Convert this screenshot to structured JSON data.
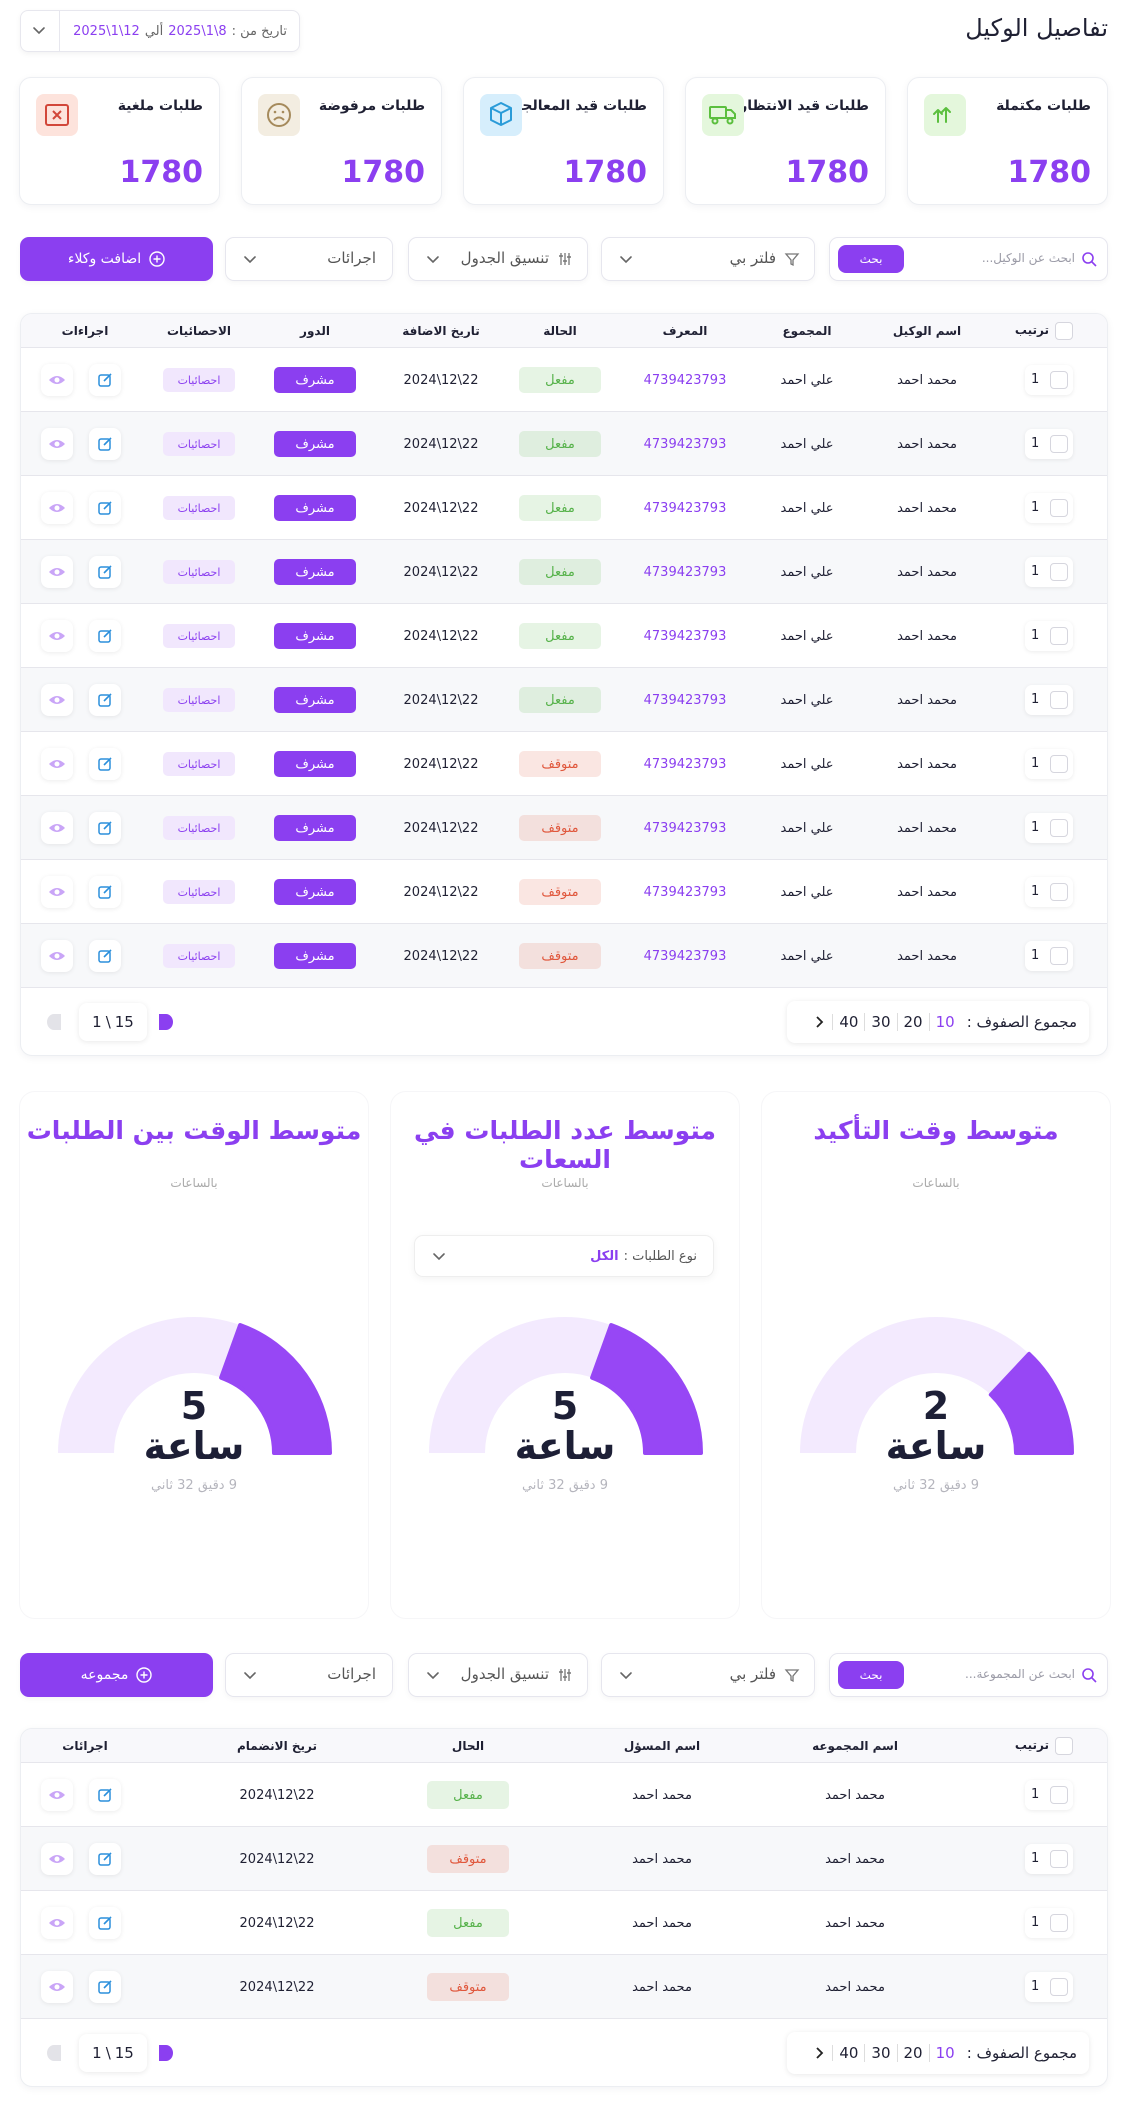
{
  "header": {
    "title": "تفاصيل الوكيل",
    "date_label": "تاريخ من :",
    "date_from": "2025\\1\\8",
    "date_sep": "ألي",
    "date_to": "2025\\1\\12"
  },
  "stats": [
    {
      "label": "طلبات مكتملة",
      "value": 1780
    },
    {
      "label": "طلبات قيد الانتظار",
      "value": 1780
    },
    {
      "label": "طلبات قيد المعالجة",
      "value": 1780
    },
    {
      "label": "طلبات مرفوضة",
      "value": 1780
    },
    {
      "label": "طلبات ملغية",
      "value": 1780
    }
  ],
  "toolbar1": {
    "search_placeholder": "ابحث عن الوكيل...",
    "search_button": "بحث",
    "filter": "فلتر بي",
    "format": "تنسيق الجدول",
    "actions": "اجرائات",
    "add": "اضافت وكلاء"
  },
  "table1": {
    "headers": [
      "ترتيب",
      "اسم الوكيل",
      "المجموع",
      "المعرف",
      "الحالة",
      "تاريخ الاضافة",
      "الدور",
      "الاحصائيات",
      "اجراءات"
    ],
    "rows": [
      {
        "rank": 1,
        "name": "محمد احمد",
        "group": "علي احمد",
        "id": "4739423793",
        "status": "مفعل",
        "status_color": "#56b24a",
        "date": "2024\\12\\22",
        "role": "مشرف",
        "stats": "احصائيات"
      },
      {
        "rank": 1,
        "name": "محمد احمد",
        "group": "علي احمد",
        "id": "4739423793",
        "status": "مفعل",
        "status_color": "#56b24a",
        "date": "2024\\12\\22",
        "role": "مشرف",
        "stats": "احصائيات"
      },
      {
        "rank": 1,
        "name": "محمد احمد",
        "group": "علي احمد",
        "id": "4739423793",
        "status": "مفعل",
        "status_color": "#56b24a",
        "date": "2024\\12\\22",
        "role": "مشرف",
        "stats": "احصائيات"
      },
      {
        "rank": 1,
        "name": "محمد احمد",
        "group": "علي احمد",
        "id": "4739423793",
        "status": "مفعل",
        "status_color": "#56b24a",
        "date": "2024\\12\\22",
        "role": "مشرف",
        "stats": "احصائيات"
      },
      {
        "rank": 1,
        "name": "محمد احمد",
        "group": "علي احمد",
        "id": "4739423793",
        "status": "مفعل",
        "status_color": "#56b24a",
        "date": "2024\\12\\22",
        "role": "مشرف",
        "stats": "احصائيات"
      },
      {
        "rank": 1,
        "name": "محمد احمد",
        "group": "علي احمد",
        "id": "4739423793",
        "status": "مفعل",
        "status_color": "#56b24a",
        "date": "2024\\12\\22",
        "role": "مشرف",
        "stats": "احصائيات"
      },
      {
        "rank": 1,
        "name": "محمد احمد",
        "group": "علي احمد",
        "id": "4739423793",
        "status": "متوقف",
        "status_color": "#e0573c",
        "date": "2024\\12\\22",
        "role": "مشرف",
        "stats": "احصائيات"
      },
      {
        "rank": 1,
        "name": "محمد احمد",
        "group": "علي احمد",
        "id": "4739423793",
        "status": "متوقف",
        "status_color": "#e0573c",
        "date": "2024\\12\\22",
        "role": "مشرف",
        "stats": "احصائيات"
      },
      {
        "rank": 1,
        "name": "محمد احمد",
        "group": "علي احمد",
        "id": "4739423793",
        "status": "متوقف",
        "status_color": "#e0573c",
        "date": "2024\\12\\22",
        "role": "مشرف",
        "stats": "احصائيات"
      },
      {
        "rank": 1,
        "name": "محمد احمد",
        "group": "علي احمد",
        "id": "4739423793",
        "status": "متوقف",
        "status_color": "#e0573c",
        "date": "2024\\12\\22",
        "role": "مشرف",
        "stats": "احصائيات"
      }
    ]
  },
  "pagination1": {
    "label": "مجموع الصفوف :",
    "sizes": [
      10,
      20,
      30,
      40
    ],
    "pager": [
      "15",
      "\\",
      "1"
    ]
  },
  "gauges": {
    "type_label": "نوع الطلبات :",
    "type_value": "الكل",
    "items": [
      {
        "title": "متوسط وقت التأكيد",
        "subtitle": "بالساعات",
        "value": 2,
        "unit": "ساعة",
        "detail": "9 دقيق 32 ثاني"
      },
      {
        "title": "متوسط عدد الطلبات في السعات",
        "subtitle": "بالساعات",
        "value": 5,
        "unit": "ساعة",
        "detail": "9 دقيق 32 ثاني"
      },
      {
        "title": "متوسط الوقت بين الطلبات",
        "subtitle": "بالساعات",
        "value": 5,
        "unit": "ساعة",
        "detail": "9 دقيق 32 ثاني"
      }
    ]
  },
  "toolbar2": {
    "search_placeholder": "ابحث عن المجموعة...",
    "search_button": "بحث",
    "filter": "فلتر بي",
    "format": "تنسيق الجدول",
    "actions": "اجرائات",
    "add": "مجموعه"
  },
  "table2": {
    "headers": [
      "ترتيب",
      "اسم المجموعه",
      "اسم المسؤل",
      "الحال",
      "تريخ الانضمام",
      "اجرائات"
    ],
    "rows": [
      {
        "rank": 1,
        "group": "محمد احمد",
        "manager": "محمد احمد",
        "status": "مفعل",
        "status_color": "#56b24a",
        "date": "2024\\12\\22"
      },
      {
        "rank": 1,
        "group": "محمد احمد",
        "manager": "محمد احمد",
        "status": "متوقف",
        "status_color": "#e0573c",
        "date": "2024\\12\\22"
      },
      {
        "rank": 1,
        "group": "محمد احمد",
        "manager": "محمد احمد",
        "status": "مفعل",
        "status_color": "#56b24a",
        "date": "2024\\12\\22"
      },
      {
        "rank": 1,
        "group": "محمد احمد",
        "manager": "محمد احمد",
        "status": "متوقف",
        "status_color": "#e0573c",
        "date": "2024\\12\\22"
      }
    ]
  },
  "pagination2": {
    "label": "مجموع الصفوف :",
    "sizes": [
      10,
      20,
      30,
      40
    ],
    "pager": [
      "15",
      "\\",
      "1"
    ]
  }
}
